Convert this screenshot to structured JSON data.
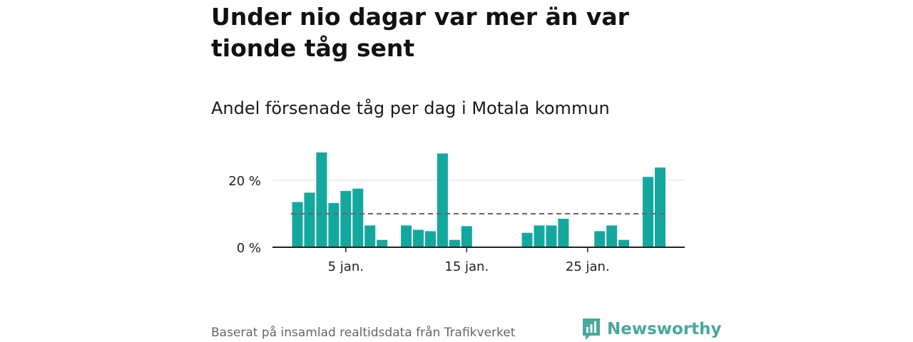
{
  "title": "Under nio dagar var mer än var tionde tåg sent",
  "subtitle": "Andel försenade tåg per dag i Motala kommun",
  "footer": "Baserat på insamlad realtidsdata från Trafikverket",
  "brand": {
    "name": "Newsworthy",
    "icon": "newsworthy-logo-icon"
  },
  "colors": {
    "bar": "#13a89e",
    "reference": "#666666",
    "axis": "#222222",
    "grid": "#dddddd",
    "brand": "#4aa89c"
  },
  "chart_data": {
    "type": "bar",
    "x": [
      1,
      2,
      3,
      4,
      5,
      6,
      7,
      8,
      9,
      10,
      11,
      12,
      13,
      14,
      15,
      16,
      17,
      18,
      19,
      20,
      21,
      22,
      23,
      24,
      25,
      26,
      27,
      28,
      29,
      30,
      31
    ],
    "values": [
      13.5,
      16.3,
      28.3,
      13.2,
      16.8,
      17.5,
      6.5,
      2.2,
      null,
      6.5,
      5.2,
      4.8,
      28,
      2.2,
      6.3,
      0,
      0,
      0,
      0,
      4.3,
      6.5,
      6.5,
      8.5,
      0,
      0,
      4.8,
      6.5,
      2.2,
      0,
      21,
      23.8
    ],
    "reference_line": 10,
    "ylim": [
      0,
      30
    ],
    "y_ticks": [
      {
        "value": 0,
        "label": "0 %"
      },
      {
        "value": 20,
        "label": "20 %"
      }
    ],
    "x_ticks": [
      {
        "value": 5,
        "label": "5 jan."
      },
      {
        "value": 15,
        "label": "15 jan."
      },
      {
        "value": 25,
        "label": "25 jan."
      }
    ],
    "grid": true
  }
}
